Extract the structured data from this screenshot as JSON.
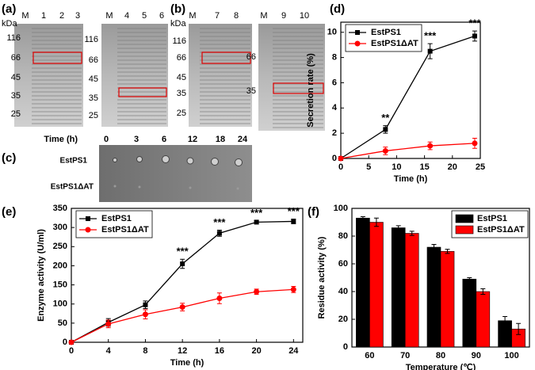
{
  "panel_labels": [
    "(a)",
    "(b)",
    "(c)",
    "(d)",
    "(e)",
    "(f)"
  ],
  "gels": [
    {
      "unit": "kDa",
      "lanes": [
        "M",
        "1",
        "2",
        "3"
      ],
      "markers": [
        116,
        66,
        45,
        35,
        25
      ]
    },
    {
      "lanes": [
        "M",
        "4",
        "5",
        "6"
      ],
      "markers": [
        116,
        66,
        45,
        35,
        25
      ]
    },
    {
      "unit": "kDa",
      "lanes": [
        "M",
        "7",
        "8"
      ],
      "markers": [
        116,
        66,
        45,
        35,
        25
      ]
    },
    {
      "lanes": [
        "M",
        "9",
        "10"
      ],
      "markers": [
        66,
        35
      ]
    }
  ],
  "time_label": "Time (h)",
  "times": [
    0,
    3,
    6,
    12,
    18,
    24
  ],
  "plate_labels": [
    "EstPS1",
    "EstPS1ΔAT"
  ],
  "chart_data": [
    {
      "type": "line",
      "x_label": "Time (h)",
      "y_label": "Secretion rate (%)",
      "x": [
        0,
        8,
        16,
        24
      ],
      "series": [
        {
          "name": "EstPS1",
          "color": "#000000",
          "marker": "square",
          "values": [
            0,
            2.3,
            8.5,
            9.7
          ],
          "errors": [
            0,
            0.3,
            0.6,
            0.4
          ]
        },
        {
          "name": "EstPS1ΔAT",
          "color": "#ff0000",
          "marker": "circle",
          "values": [
            0,
            0.6,
            1.0,
            1.2
          ],
          "errors": [
            0,
            0.3,
            0.3,
            0.4
          ]
        }
      ],
      "annotations": [
        {
          "text": "**",
          "x": 8
        },
        {
          "text": "***",
          "x": 16
        },
        {
          "text": "***",
          "x": 24
        }
      ],
      "xlim": [
        0,
        25
      ],
      "xticks": [
        0,
        5,
        10,
        15,
        20,
        25
      ],
      "ylim": [
        0,
        10.8
      ],
      "yticks": [
        0,
        2,
        4,
        6,
        8,
        10
      ],
      "legend": "upper left"
    },
    {
      "type": "line",
      "x_label": "Time (h)",
      "y_label": "Enzyme activity (U/ml)",
      "x": [
        0,
        4,
        8,
        12,
        16,
        20,
        24
      ],
      "series": [
        {
          "name": "EstPS1",
          "color": "#000000",
          "marker": "square",
          "values": [
            0,
            52,
            98,
            205,
            285,
            314,
            316
          ],
          "errors": [
            0,
            10,
            10,
            12,
            8,
            4,
            6
          ]
        },
        {
          "name": "EstPS1ΔAT",
          "color": "#ff0000",
          "marker": "circle",
          "values": [
            0,
            48,
            73,
            92,
            115,
            132,
            138
          ],
          "errors": [
            0,
            10,
            12,
            10,
            14,
            7,
            8
          ]
        }
      ],
      "annotations": [
        {
          "text": "***",
          "x": 12
        },
        {
          "text": "***",
          "x": 16
        },
        {
          "text": "***",
          "x": 20
        },
        {
          "text": "***",
          "x": 24
        }
      ],
      "xlim": [
        0,
        25
      ],
      "xticks": [
        0,
        4,
        8,
        12,
        16,
        20,
        24
      ],
      "ylim": [
        0,
        350
      ],
      "yticks": [
        0,
        50,
        100,
        150,
        200,
        250,
        300,
        350
      ],
      "legend": "upper left"
    },
    {
      "type": "bar",
      "x_label": "Temperature (℃)",
      "y_label": "Residue activity (%)",
      "categories": [
        "60",
        "70",
        "80",
        "90",
        "100"
      ],
      "series": [
        {
          "name": "EstPS1",
          "color": "#000000",
          "values": [
            93,
            86,
            72,
            49,
            19
          ],
          "errors": [
            1,
            1.5,
            2,
            1,
            3
          ]
        },
        {
          "name": "EstPS1ΔAT",
          "color": "#ff0000",
          "values": [
            90,
            82,
            69,
            40,
            13
          ],
          "errors": [
            3,
            1.5,
            1.5,
            2,
            4
          ]
        }
      ],
      "ylim": [
        0,
        100
      ],
      "yticks": [
        0,
        20,
        40,
        60,
        80,
        100
      ],
      "legend": "upper right"
    }
  ]
}
